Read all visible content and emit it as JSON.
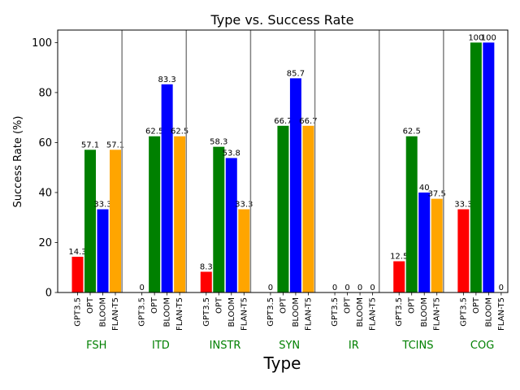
{
  "chart_data": {
    "type": "bar",
    "title": "Type vs. Success Rate",
    "xlabel": "Type",
    "ylabel": "Success Rate (%)",
    "ylim": [
      0,
      105
    ],
    "yticks": [
      0,
      20,
      40,
      60,
      80,
      100
    ],
    "categories": [
      "FSH",
      "ITD",
      "INSTR",
      "SYN",
      "IR",
      "TCINS",
      "COG"
    ],
    "category_label_color": "#008000",
    "series": [
      {
        "name": "GPT3.5",
        "color": "#ff0000",
        "values": [
          14.3,
          0,
          8.3,
          0,
          0,
          12.5,
          33.3
        ],
        "labels": [
          "14.3",
          "0",
          "8.3",
          "0",
          "0",
          "12.5",
          "33.3"
        ]
      },
      {
        "name": "OPT",
        "color": "#008000",
        "values": [
          57.1,
          62.5,
          58.3,
          66.7,
          0,
          62.5,
          100
        ],
        "labels": [
          "57.1",
          "62.5",
          "58.3",
          "66.7",
          "0",
          "62.5",
          "100"
        ]
      },
      {
        "name": "BLOOM",
        "color": "#0000ff",
        "values": [
          33.3,
          83.3,
          53.8,
          85.7,
          0,
          40,
          100
        ],
        "labels": [
          "33.3",
          "83.3",
          "53.8",
          "85.7",
          "0",
          "40",
          "100"
        ]
      },
      {
        "name": "FLAN-T5",
        "color": "#ffa500",
        "values": [
          57.1,
          62.5,
          33.3,
          66.7,
          0,
          37.5,
          0
        ],
        "labels": [
          "57.1",
          "62.5",
          "33.3",
          "66.7",
          "0",
          "37.5",
          "0"
        ]
      }
    ],
    "grid": false,
    "legend": "none"
  }
}
